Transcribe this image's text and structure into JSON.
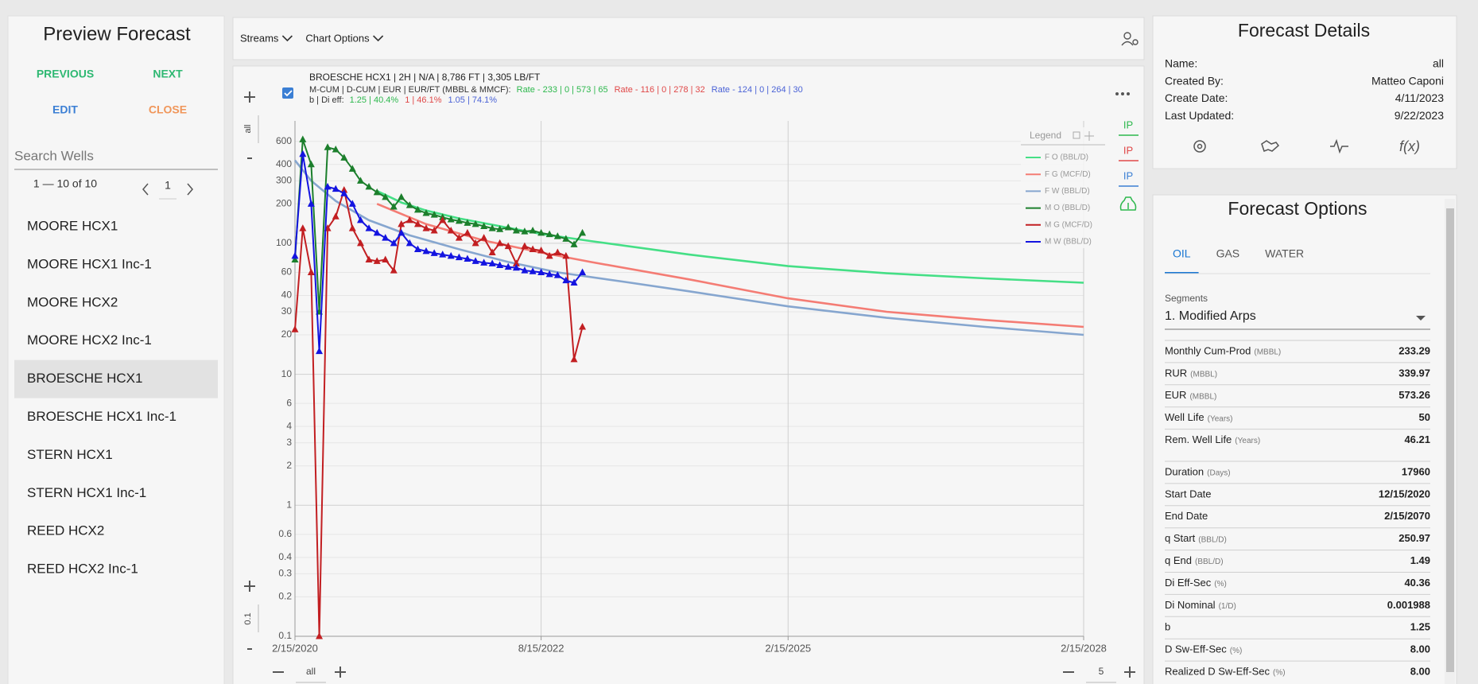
{
  "left_panel": {
    "title": "Preview Forecast",
    "buttons": [
      {
        "text": "PREVIOUS",
        "color": "#2eb872"
      },
      {
        "text": "NEXT",
        "color": "#2eb872"
      },
      {
        "text": "EDIT",
        "color": "#3b7fd4"
      },
      {
        "text": "CLOSE",
        "color": "#f0965a"
      }
    ],
    "search_placeholder": "Search Wells",
    "pagination": "1 — 10 of 10",
    "page": "1",
    "wells": [
      "MOORE HCX1",
      "MOORE HCX1 Inc-1",
      "MOORE HCX2",
      "MOORE HCX2 Inc-1",
      "BROESCHE HCX1",
      "BROESCHE HCX1 Inc-1",
      "STERN HCX1",
      "STERN HCX1 Inc-1",
      "REED HCX2",
      "REED HCX2 Inc-1"
    ],
    "selected": 4
  },
  "toolbar": {
    "menus": [
      "Streams",
      "Chart Options"
    ]
  },
  "chart_header": {
    "well": "BROESCHE HCX1 | 2H | N/A | 8,786 FT | 3,305 LB/FT",
    "cum_label": "M-CUM | D-CUM | EUR | EUR/FT (MBBL & MMCF):",
    "cum_groups": [
      {
        "text": "Rate - 233 | 0 | 573 | 65",
        "color": "#2db84d"
      },
      {
        "text": "Rate - 116 | 0 | 278 | 32",
        "color": "#e04848"
      },
      {
        "text": "Rate - 124 | 0 | 264 | 30",
        "color": "#4a62d6"
      }
    ],
    "b_label": "b | Di eff:",
    "b_groups": [
      {
        "text": "1.25 | 40.4%",
        "color": "#2db84d"
      },
      {
        "text": "1 | 46.1%",
        "color": "#e04848"
      },
      {
        "text": "1.05 | 74.1%",
        "color": "#4a62d6"
      }
    ]
  },
  "chart_controls": {
    "y_top": "all",
    "y_bottom": "0.1",
    "x_left": "all",
    "x_right": "5"
  },
  "side_buttons": [
    {
      "text": "IP",
      "color": "#2db84d"
    },
    {
      "text": "IP",
      "color": "#e04848"
    },
    {
      "text": "IP",
      "color": "#3b7fd4"
    }
  ],
  "chart_data": {
    "type": "line",
    "log_y": true,
    "grid": true,
    "legend_title": "Legend",
    "legend_position": "upper right",
    "xlim": [
      "2020-02-15",
      "2028-02-15"
    ],
    "xticks": [
      {
        "value": "2020-02-15",
        "label": "2/15/2020"
      },
      {
        "value": "2022-08-15",
        "label": "8/15/2022"
      },
      {
        "value": "2025-02-15",
        "label": "2/15/2025"
      },
      {
        "value": "2028-02-15",
        "label": "2/15/2028"
      }
    ],
    "ylim": [
      0.1,
      860
    ],
    "yticks": [
      0.1,
      0.2,
      0.3,
      0.4,
      0.6,
      1,
      2,
      3,
      4,
      6,
      10,
      20,
      30,
      40,
      60,
      100,
      200,
      300,
      400,
      600
    ],
    "x": [
      "2020-02-15",
      "2020-03-15",
      "2020-04-15",
      "2020-05-15",
      "2020-06-15",
      "2020-07-15",
      "2020-08-15",
      "2020-09-15",
      "2020-10-15",
      "2020-11-15",
      "2020-12-15",
      "2021-01-15",
      "2021-02-15",
      "2021-03-15",
      "2021-04-15",
      "2021-05-15",
      "2021-06-15",
      "2021-07-15",
      "2021-08-15",
      "2021-09-15",
      "2021-10-15",
      "2021-11-15",
      "2021-12-15",
      "2022-01-15",
      "2022-02-15",
      "2022-03-15",
      "2022-04-15",
      "2022-05-15",
      "2022-06-15",
      "2022-07-15",
      "2022-08-15",
      "2022-09-15",
      "2022-10-15",
      "2022-11-15",
      "2022-12-15",
      "2023-01-15"
    ],
    "series": [
      {
        "name": "F O (BBL/D)",
        "color": "#45df86",
        "x": [
          "2020-12-15",
          "2021-03-15",
          "2021-06-15",
          "2021-10-15",
          "2022-03-15",
          "2022-08-15",
          "2023-02-15",
          "2024-02-15",
          "2025-02-15",
          "2026-02-15",
          "2027-02-15",
          "2028-02-15"
        ],
        "values": [
          251,
          205,
          178,
          155,
          135,
          118,
          104,
          82,
          67,
          59,
          54,
          50
        ]
      },
      {
        "name": "F G (MCF/D)",
        "color": "#f47c74",
        "x": [
          "2020-12-15",
          "2021-06-15",
          "2022-01-15",
          "2022-08-15",
          "2023-02-15",
          "2024-02-15",
          "2025-02-15",
          "2026-02-15",
          "2027-02-15",
          "2028-02-15"
        ],
        "values": [
          200,
          140,
          105,
          85,
          72,
          53,
          38,
          30,
          26,
          23
        ]
      },
      {
        "name": "F W (BBL/D)",
        "color": "#86a6cf",
        "x": [
          "2020-02-15",
          "2020-04-15",
          "2020-07-15",
          "2020-11-15",
          "2021-04-15",
          "2021-10-15",
          "2022-04-15",
          "2022-10-15",
          "2023-06-15",
          "2024-02-15",
          "2025-02-15",
          "2026-02-15",
          "2027-02-15",
          "2028-02-15"
        ],
        "values": [
          430,
          300,
          210,
          150,
          115,
          90,
          72,
          60,
          51,
          43,
          33,
          27,
          23,
          20
        ]
      },
      {
        "name": "M O (BBL/D)",
        "color": "#1c7f2c",
        "marker": "triangle",
        "values": [
          75,
          620,
          400,
          30,
          540,
          520,
          450,
          370,
          300,
          270,
          245,
          225,
          190,
          225,
          195,
          180,
          170,
          165,
          158,
          152,
          148,
          143,
          140,
          135,
          130,
          128,
          132,
          125,
          123,
          125,
          120,
          117,
          113,
          108,
          98,
          120
        ]
      },
      {
        "name": "M G (MCF/D)",
        "color": "#c21f22",
        "marker": "triangle",
        "values": [
          22,
          130,
          60,
          0.1,
          130,
          160,
          255,
          130,
          100,
          75,
          73,
          75,
          62,
          140,
          150,
          140,
          130,
          125,
          150,
          125,
          110,
          120,
          100,
          110,
          85,
          100,
          95,
          70,
          95,
          90,
          88,
          80,
          85,
          80,
          13,
          23
        ]
      },
      {
        "name": "M W (BBL/D)",
        "color": "#1414e0",
        "marker": "triangle",
        "values": [
          80,
          480,
          200,
          15,
          270,
          260,
          240,
          200,
          150,
          130,
          120,
          110,
          100,
          120,
          100,
          90,
          87,
          84,
          82,
          80,
          78,
          76,
          73,
          71,
          70,
          68,
          66,
          65,
          62,
          61,
          60,
          58,
          57,
          52,
          50,
          60
        ]
      }
    ]
  },
  "forecast_details": {
    "title": "Forecast Details",
    "rows": [
      [
        "Name:",
        "all"
      ],
      [
        "Created By:",
        "Matteo Caponi"
      ],
      [
        "Create Date:",
        "4/11/2023"
      ],
      [
        "Last Updated:",
        "9/22/2023"
      ]
    ]
  },
  "forecast_options": {
    "title": "Forecast Options",
    "tabs": [
      "OIL",
      "GAS",
      "WATER"
    ],
    "active_tab": 0,
    "segments_label": "Segments",
    "segment": "1. Modified Arps",
    "groups": [
      [
        {
          "label": "Monthly Cum-Prod",
          "unit": "(MBBL)",
          "value": "233.29"
        },
        {
          "label": "RUR",
          "unit": "(MBBL)",
          "value": "339.97"
        },
        {
          "label": "EUR",
          "unit": "(MBBL)",
          "value": "573.26"
        },
        {
          "label": "Well Life",
          "unit": "(Years)",
          "value": "50"
        },
        {
          "label": "Rem. Well Life",
          "unit": "(Years)",
          "value": "46.21"
        }
      ],
      [
        {
          "label": "Duration",
          "unit": "(Days)",
          "value": "17960"
        },
        {
          "label": "Start Date",
          "value": "12/15/2020"
        },
        {
          "label": "End Date",
          "value": "2/15/2070"
        },
        {
          "label": "q Start",
          "unit": "(BBL/D)",
          "value": "250.97"
        },
        {
          "label": "q End",
          "unit": "(BBL/D)",
          "value": "1.49"
        },
        {
          "label": "Di Eff-Sec",
          "unit": "(%)",
          "value": "40.36"
        },
        {
          "label": "Di Nominal",
          "unit": "(1/D)",
          "value": "0.001988"
        },
        {
          "label": "b",
          "value": "1.25"
        },
        {
          "label": "D Sw-Eff-Sec",
          "unit": "(%)",
          "value": "8.00"
        },
        {
          "label": "Realized D Sw-Eff-Sec",
          "unit": "(%)",
          "value": "8.00"
        }
      ]
    ]
  }
}
